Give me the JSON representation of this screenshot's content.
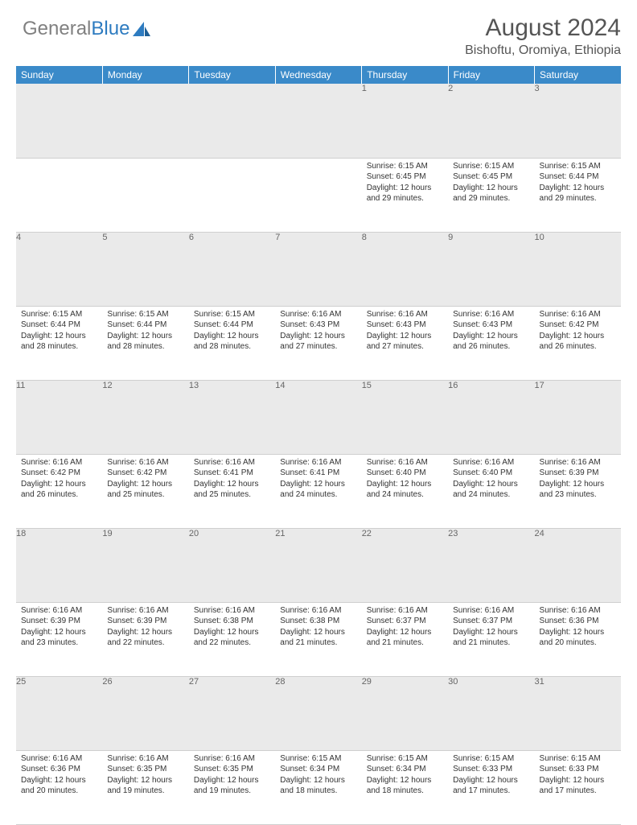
{
  "brand": {
    "part1": "General",
    "part2": "Blue"
  },
  "title": "August 2024",
  "location": "Bishoftu, Oromiya, Ethiopia",
  "colors": {
    "header_bg": "#3a8ac9",
    "header_text": "#ffffff",
    "daynum_bg": "#eaeaea",
    "body_text": "#333333",
    "brand_gray": "#808080",
    "brand_blue": "#2d7bc0"
  },
  "weekdays": [
    "Sunday",
    "Monday",
    "Tuesday",
    "Wednesday",
    "Thursday",
    "Friday",
    "Saturday"
  ],
  "weeks": [
    [
      null,
      null,
      null,
      null,
      {
        "n": "1",
        "sr": "6:15 AM",
        "ss": "6:45 PM",
        "dl": "12 hours and 29 minutes."
      },
      {
        "n": "2",
        "sr": "6:15 AM",
        "ss": "6:45 PM",
        "dl": "12 hours and 29 minutes."
      },
      {
        "n": "3",
        "sr": "6:15 AM",
        "ss": "6:44 PM",
        "dl": "12 hours and 29 minutes."
      }
    ],
    [
      {
        "n": "4",
        "sr": "6:15 AM",
        "ss": "6:44 PM",
        "dl": "12 hours and 28 minutes."
      },
      {
        "n": "5",
        "sr": "6:15 AM",
        "ss": "6:44 PM",
        "dl": "12 hours and 28 minutes."
      },
      {
        "n": "6",
        "sr": "6:15 AM",
        "ss": "6:44 PM",
        "dl": "12 hours and 28 minutes."
      },
      {
        "n": "7",
        "sr": "6:16 AM",
        "ss": "6:43 PM",
        "dl": "12 hours and 27 minutes."
      },
      {
        "n": "8",
        "sr": "6:16 AM",
        "ss": "6:43 PM",
        "dl": "12 hours and 27 minutes."
      },
      {
        "n": "9",
        "sr": "6:16 AM",
        "ss": "6:43 PM",
        "dl": "12 hours and 26 minutes."
      },
      {
        "n": "10",
        "sr": "6:16 AM",
        "ss": "6:42 PM",
        "dl": "12 hours and 26 minutes."
      }
    ],
    [
      {
        "n": "11",
        "sr": "6:16 AM",
        "ss": "6:42 PM",
        "dl": "12 hours and 26 minutes."
      },
      {
        "n": "12",
        "sr": "6:16 AM",
        "ss": "6:42 PM",
        "dl": "12 hours and 25 minutes."
      },
      {
        "n": "13",
        "sr": "6:16 AM",
        "ss": "6:41 PM",
        "dl": "12 hours and 25 minutes."
      },
      {
        "n": "14",
        "sr": "6:16 AM",
        "ss": "6:41 PM",
        "dl": "12 hours and 24 minutes."
      },
      {
        "n": "15",
        "sr": "6:16 AM",
        "ss": "6:40 PM",
        "dl": "12 hours and 24 minutes."
      },
      {
        "n": "16",
        "sr": "6:16 AM",
        "ss": "6:40 PM",
        "dl": "12 hours and 24 minutes."
      },
      {
        "n": "17",
        "sr": "6:16 AM",
        "ss": "6:39 PM",
        "dl": "12 hours and 23 minutes."
      }
    ],
    [
      {
        "n": "18",
        "sr": "6:16 AM",
        "ss": "6:39 PM",
        "dl": "12 hours and 23 minutes."
      },
      {
        "n": "19",
        "sr": "6:16 AM",
        "ss": "6:39 PM",
        "dl": "12 hours and 22 minutes."
      },
      {
        "n": "20",
        "sr": "6:16 AM",
        "ss": "6:38 PM",
        "dl": "12 hours and 22 minutes."
      },
      {
        "n": "21",
        "sr": "6:16 AM",
        "ss": "6:38 PM",
        "dl": "12 hours and 21 minutes."
      },
      {
        "n": "22",
        "sr": "6:16 AM",
        "ss": "6:37 PM",
        "dl": "12 hours and 21 minutes."
      },
      {
        "n": "23",
        "sr": "6:16 AM",
        "ss": "6:37 PM",
        "dl": "12 hours and 21 minutes."
      },
      {
        "n": "24",
        "sr": "6:16 AM",
        "ss": "6:36 PM",
        "dl": "12 hours and 20 minutes."
      }
    ],
    [
      {
        "n": "25",
        "sr": "6:16 AM",
        "ss": "6:36 PM",
        "dl": "12 hours and 20 minutes."
      },
      {
        "n": "26",
        "sr": "6:16 AM",
        "ss": "6:35 PM",
        "dl": "12 hours and 19 minutes."
      },
      {
        "n": "27",
        "sr": "6:16 AM",
        "ss": "6:35 PM",
        "dl": "12 hours and 19 minutes."
      },
      {
        "n": "28",
        "sr": "6:15 AM",
        "ss": "6:34 PM",
        "dl": "12 hours and 18 minutes."
      },
      {
        "n": "29",
        "sr": "6:15 AM",
        "ss": "6:34 PM",
        "dl": "12 hours and 18 minutes."
      },
      {
        "n": "30",
        "sr": "6:15 AM",
        "ss": "6:33 PM",
        "dl": "12 hours and 17 minutes."
      },
      {
        "n": "31",
        "sr": "6:15 AM",
        "ss": "6:33 PM",
        "dl": "12 hours and 17 minutes."
      }
    ]
  ],
  "labels": {
    "sunrise": "Sunrise:",
    "sunset": "Sunset:",
    "daylight": "Daylight:"
  }
}
